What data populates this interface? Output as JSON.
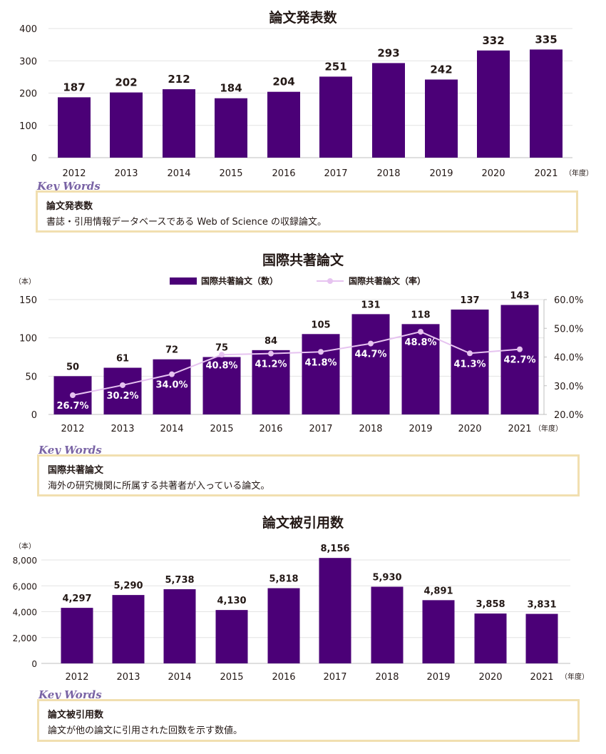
{
  "colors": {
    "bar": "#4b0077",
    "line": "#e6c3f0",
    "keyword_label": "#7a64a5",
    "keyword_border": "#f1dfb0"
  },
  "chart_data": [
    {
      "type": "bar",
      "title": "論文発表数",
      "categories": [
        "2012",
        "2013",
        "2014",
        "2015",
        "2016",
        "2017",
        "2018",
        "2019",
        "2020",
        "2021"
      ],
      "values": [
        187,
        202,
        212,
        184,
        204,
        251,
        293,
        242,
        332,
        335
      ],
      "value_labels": [
        "187",
        "202",
        "212",
        "184",
        "204",
        "251",
        "293",
        "242",
        "332",
        "335"
      ],
      "ylim": [
        0,
        400
      ],
      "yticks": [
        0,
        100,
        200,
        300,
        400
      ],
      "ytick_labels": [
        "0",
        "100",
        "200",
        "300",
        "400"
      ],
      "x_unit": "（年度）",
      "grid": true
    },
    {
      "type": "bar",
      "title": "国際共著論文",
      "categories": [
        "2012",
        "2013",
        "2014",
        "2015",
        "2016",
        "2017",
        "2018",
        "2019",
        "2020",
        "2021"
      ],
      "series": [
        {
          "name": "国際共著論文（数）",
          "type": "bar",
          "values": [
            50,
            61,
            72,
            75,
            84,
            105,
            131,
            118,
            137,
            143
          ],
          "value_labels": [
            "50",
            "61",
            "72",
            "75",
            "84",
            "105",
            "131",
            "118",
            "137",
            "143"
          ]
        },
        {
          "name": "国際共著論文（率）",
          "type": "line",
          "values": [
            26.7,
            30.2,
            34.0,
            40.8,
            41.2,
            41.8,
            44.7,
            48.8,
            41.3,
            42.7
          ],
          "value_labels": [
            "26.7%",
            "30.2%",
            "34.0%",
            "40.8%",
            "41.2%",
            "41.8%",
            "44.7%",
            "48.8%",
            "41.3%",
            "42.7%"
          ]
        }
      ],
      "ylim": [
        0,
        150
      ],
      "yticks": [
        0,
        50,
        100,
        150
      ],
      "ytick_labels": [
        "0",
        "50",
        "100",
        "150"
      ],
      "y2lim": [
        20,
        60
      ],
      "y2ticks": [
        20,
        30,
        40,
        50,
        60
      ],
      "y2tick_labels": [
        "20.0%",
        "30.0%",
        "40.0%",
        "50.0%",
        "60.0%"
      ],
      "y_unit": "（本）",
      "x_unit": "（年度）",
      "legend_position": "top",
      "grid": true
    },
    {
      "type": "bar",
      "title": "論文被引用数",
      "categories": [
        "2012",
        "2013",
        "2014",
        "2015",
        "2016",
        "2017",
        "2018",
        "2019",
        "2020",
        "2021"
      ],
      "values": [
        4297,
        5290,
        5738,
        4130,
        5818,
        8156,
        5930,
        4891,
        3858,
        3831
      ],
      "value_labels": [
        "4,297",
        "5,290",
        "5,738",
        "4,130",
        "5,818",
        "8,156",
        "5,930",
        "4,891",
        "3,858",
        "3,831"
      ],
      "ylim": [
        0,
        8000
      ],
      "yticks": [
        0,
        2000,
        4000,
        6000,
        8000
      ],
      "ytick_labels": [
        "0",
        "2,000",
        "4,000",
        "6,000",
        "8,000"
      ],
      "y_unit": "（本）",
      "x_unit": "（年度）",
      "grid": true
    }
  ],
  "keywords": [
    {
      "label": "Key Words",
      "term": "論文発表数",
      "description": "書誌・引用情報データベースである Web of Science の収録論文。"
    },
    {
      "label": "Key Words",
      "term": "国際共著論文",
      "description": "海外の研究機関に所属する共著者が入っている論文。"
    },
    {
      "label": "Key Words",
      "term": "論文被引用数",
      "description": "論文が他の論文に引用された回数を示す数値。"
    }
  ]
}
